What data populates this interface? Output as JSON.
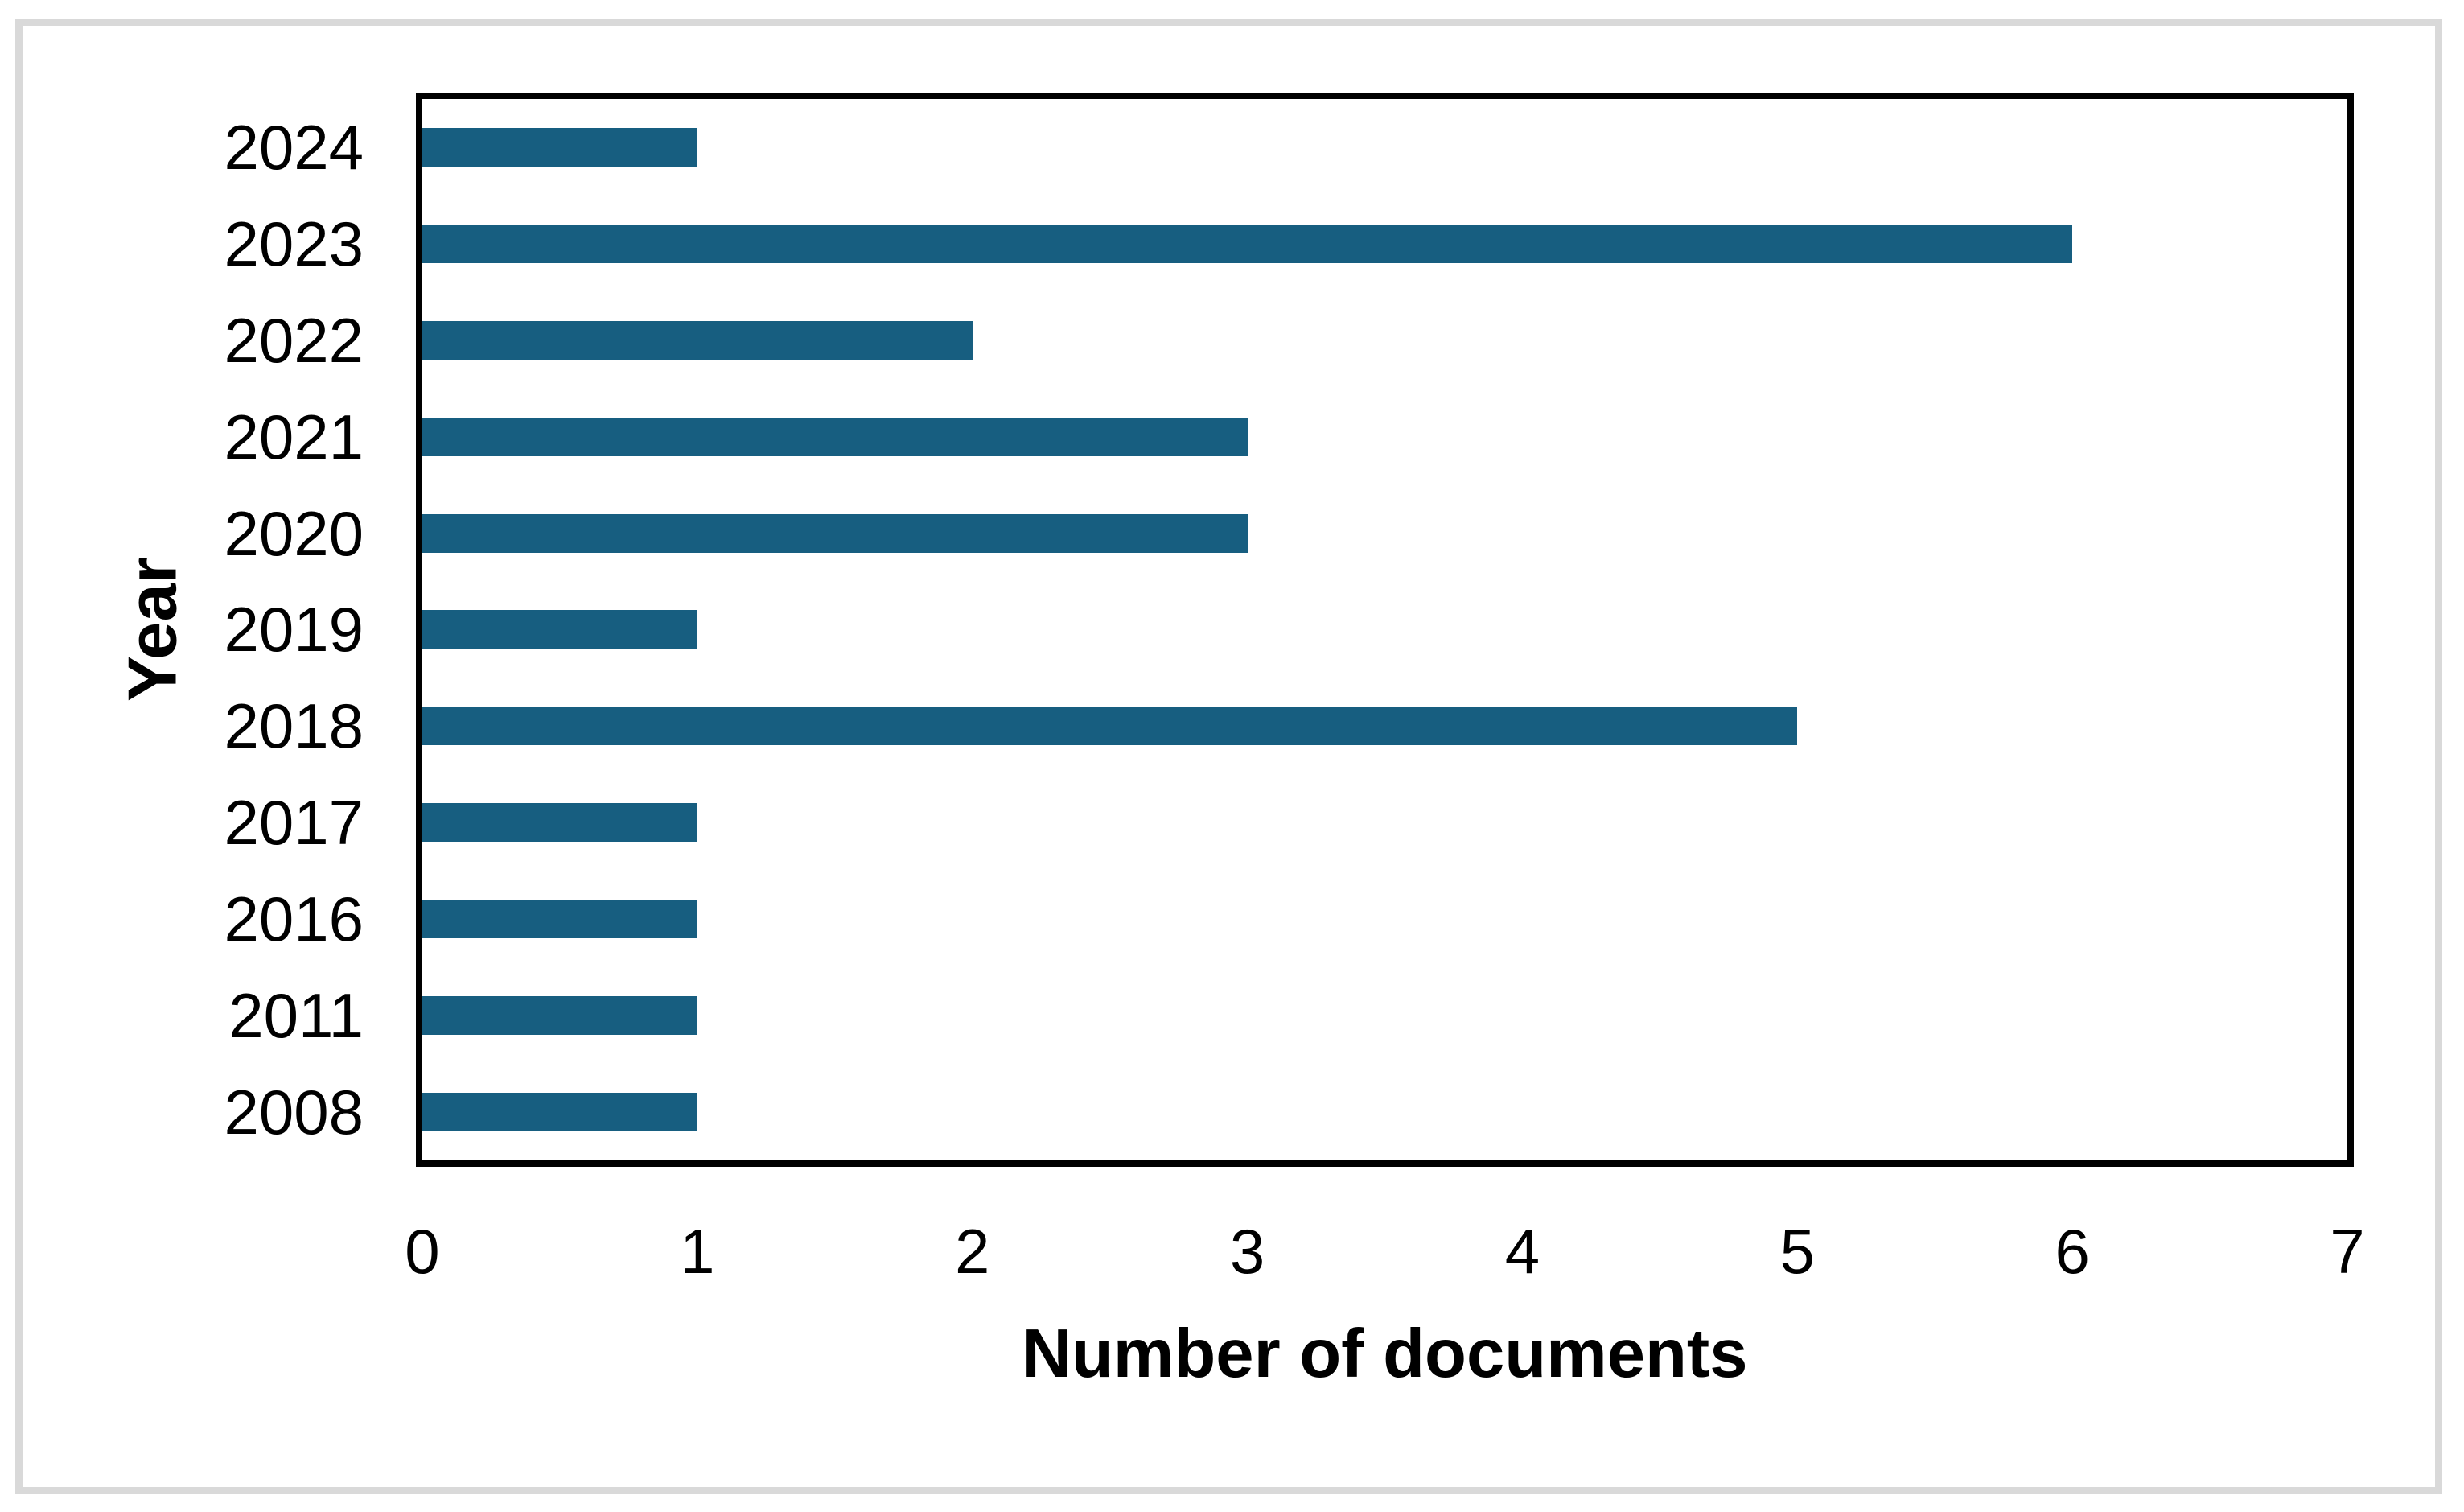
{
  "chart_data": {
    "type": "bar",
    "orientation": "horizontal",
    "title": "",
    "xlabel": "Number of documents",
    "ylabel": "Year",
    "categories": [
      "2024",
      "2023",
      "2022",
      "2021",
      "2020",
      "2019",
      "2018",
      "2017",
      "2016",
      "2011",
      "2008"
    ],
    "values": [
      1,
      6,
      2,
      3,
      3,
      1,
      5,
      1,
      1,
      1,
      1
    ],
    "xlim": [
      0,
      7
    ],
    "xticks": [
      0,
      1,
      2,
      3,
      4,
      5,
      6,
      7
    ],
    "grid": false,
    "legend": false,
    "bar_color": "#175e80",
    "axis_line_color": "#000000",
    "figure_border_color": "#d9d9d9",
    "text_color": "#000000"
  }
}
